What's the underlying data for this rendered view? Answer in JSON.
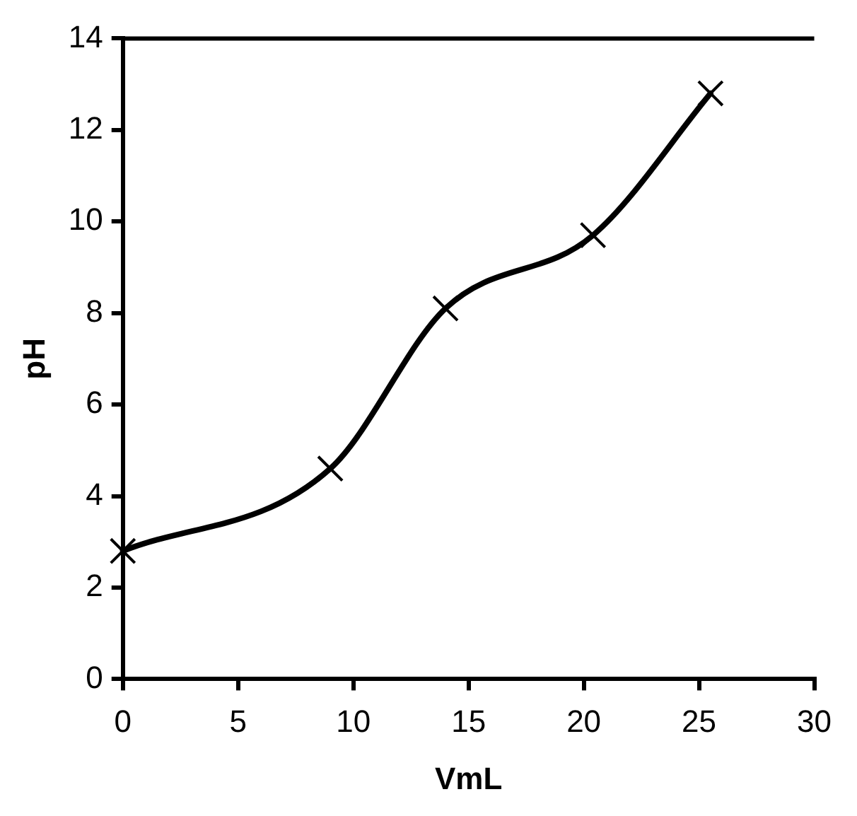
{
  "chart_data": {
    "type": "line",
    "xlabel": "VmL",
    "ylabel": "pH",
    "x": [
      0,
      9,
      14,
      20.4,
      25.5
    ],
    "series": [
      {
        "color": "#000000",
        "values": [
          2.8,
          4.6,
          8.1,
          9.7,
          12.8
        ]
      }
    ],
    "xlim": [
      0,
      30
    ],
    "xticks": [
      0,
      5,
      10,
      15,
      20,
      25,
      30
    ],
    "ylim": [
      0,
      14
    ],
    "yticks": [
      0,
      2,
      4,
      6,
      8,
      10,
      12,
      14
    ],
    "grid": false,
    "legend": false,
    "marker": "cross",
    "line_style": "solid"
  }
}
